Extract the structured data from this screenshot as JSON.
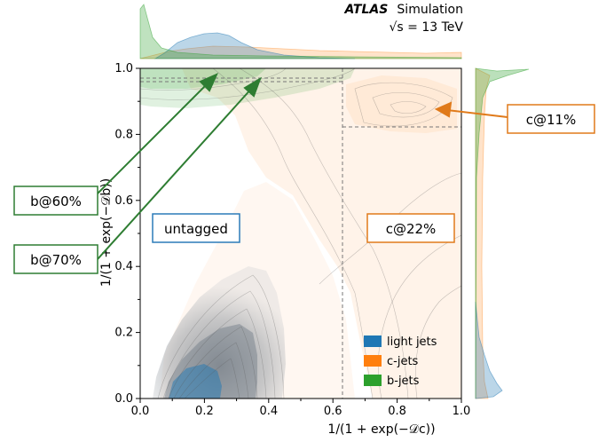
{
  "header": {
    "experiment": "ATLAS",
    "label": "Simulation",
    "energy": "√s = 13 TeV"
  },
  "chart_data": {
    "type": "contour",
    "xlabel": "1/(1 + exp(−𝒟c))",
    "ylabel": "1/(1 + exp(−𝒟b))",
    "xlim": [
      0.0,
      1.0
    ],
    "ylim": [
      0.0,
      1.0
    ],
    "xticks": [
      "0.0",
      "0.2",
      "0.4",
      "0.6",
      "0.8",
      "1.0"
    ],
    "yticks": [
      "0.0",
      "0.2",
      "0.4",
      "0.6",
      "0.8",
      "1.0"
    ],
    "grid": false,
    "legend_position": "bottom-right",
    "series": [
      {
        "name": "light jets",
        "color": "#1f77b4",
        "peak": [
          0.15,
          0.05
        ]
      },
      {
        "name": "c-jets",
        "color": "#ff7f0e",
        "peak": [
          0.9,
          0.88
        ]
      },
      {
        "name": "b-jets",
        "color": "#2ca02c",
        "peak": [
          0.05,
          0.97
        ]
      }
    ],
    "working_points": [
      {
        "name": "b@60%",
        "db_threshold": 0.97,
        "dc_max": 0.62
      },
      {
        "name": "b@70%",
        "db_threshold": 0.96,
        "dc_max": 0.62
      },
      {
        "name": "c@11%",
        "db_threshold": 0.825,
        "dc_min": 0.63
      },
      {
        "name": "c@22%",
        "dc_min": 0.63
      }
    ],
    "regions": [
      {
        "name": "untagged"
      }
    ]
  },
  "colors": {
    "light": "#1f77b4",
    "charm": "#ff7f0e",
    "bottom": "#2ca02c",
    "box_green": "#2e7d32",
    "box_orange": "#e07a1a",
    "box_blue": "#2b7bb9"
  }
}
